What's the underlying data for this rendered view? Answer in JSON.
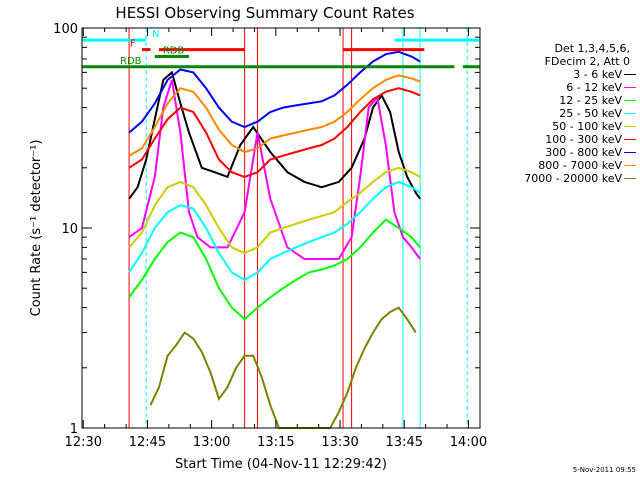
{
  "chart_data": {
    "type": "line",
    "title": "HESSI Observing Summary Count Rates",
    "xlabel": "Start Time (04-Nov-11 12:29:42)",
    "ylabel": "Count Rate (s⁻¹ detector⁻¹)",
    "yscale": "log",
    "ylim": [
      1,
      100
    ],
    "xlim_minutes": [
      0,
      93
    ],
    "x_ticks": [
      "12:30",
      "12:45",
      "13:00",
      "13:15",
      "13:30",
      "13:45",
      "14:00"
    ],
    "y_ticks": [
      "1",
      "10",
      "100"
    ],
    "detector_info": [
      "Det 1,3,4,5,6,",
      "FDecim 2, Att 0"
    ],
    "series": [
      {
        "name": "3 - 6 keV",
        "color": "#000000",
        "x": [
          11,
          13,
          15,
          17,
          19,
          21,
          23,
          25,
          28,
          31,
          34,
          37,
          40,
          44,
          48,
          52,
          56,
          60,
          63,
          66,
          68,
          70,
          72,
          74,
          76,
          78,
          79
        ],
        "y": [
          14,
          16,
          22,
          35,
          55,
          60,
          42,
          30,
          20,
          19,
          18,
          26,
          32,
          24,
          19,
          17,
          16,
          17,
          20,
          28,
          40,
          46,
          38,
          24,
          18,
          15,
          14
        ]
      },
      {
        "name": "6 - 12 keV",
        "color": "#ff00ff",
        "x": [
          11,
          14,
          17,
          19,
          21,
          23,
          25,
          27,
          30,
          34,
          38,
          41,
          44,
          48,
          52,
          56,
          60,
          63,
          65,
          67,
          69,
          71,
          73,
          75,
          77,
          79
        ],
        "y": [
          9,
          10,
          18,
          40,
          55,
          30,
          12,
          9,
          8,
          8,
          12,
          30,
          14,
          8,
          7,
          7,
          7,
          9,
          18,
          40,
          45,
          26,
          12,
          9,
          8,
          7
        ]
      },
      {
        "name": "12 - 25 keV",
        "color": "#00ff00",
        "x": [
          11,
          14,
          17,
          20,
          23,
          26,
          29,
          32,
          35,
          38,
          41,
          44,
          47,
          50,
          53,
          56,
          59,
          62,
          65,
          68,
          71,
          74,
          77,
          79
        ],
        "y": [
          4.5,
          5.5,
          7,
          8.5,
          9.5,
          9,
          7,
          5,
          4,
          3.5,
          4,
          4.5,
          5,
          5.5,
          6,
          6.2,
          6.5,
          7,
          8,
          9.5,
          11,
          10,
          9,
          8
        ]
      },
      {
        "name": "25 - 50 keV",
        "color": "#00ffff",
        "x": [
          11,
          14,
          17,
          20,
          23,
          26,
          29,
          32,
          35,
          38,
          41,
          44,
          47,
          50,
          53,
          56,
          59,
          62,
          65,
          68,
          71,
          74,
          77,
          79
        ],
        "y": [
          6,
          7.5,
          10,
          12,
          13,
          12.5,
          10,
          7.5,
          6,
          5.5,
          6,
          7,
          7.5,
          8,
          8.5,
          9,
          9.5,
          10.5,
          12,
          14,
          16,
          17,
          16,
          15
        ]
      },
      {
        "name": "50 - 100 keV",
        "color": "#cccc00",
        "x": [
          11,
          14,
          17,
          20,
          23,
          26,
          29,
          32,
          35,
          38,
          41,
          44,
          47,
          50,
          53,
          56,
          59,
          62,
          65,
          68,
          71,
          74,
          77,
          79
        ],
        "y": [
          8,
          9.5,
          13,
          16,
          17,
          16,
          13,
          10,
          8,
          7.5,
          8,
          9.5,
          10,
          10.5,
          11,
          11.5,
          12,
          13.5,
          15,
          17,
          19,
          20,
          19,
          18
        ]
      },
      {
        "name": "100 - 300 keV",
        "color": "#ff0000",
        "x": [
          11,
          14,
          17,
          20,
          23,
          26,
          29,
          32,
          35,
          38,
          41,
          44,
          47,
          50,
          53,
          56,
          59,
          62,
          65,
          68,
          71,
          74,
          77,
          79
        ],
        "y": [
          20,
          22,
          28,
          35,
          40,
          38,
          30,
          22,
          19,
          18,
          19,
          22,
          23,
          24,
          25,
          26,
          28,
          32,
          38,
          44,
          48,
          50,
          48,
          46
        ]
      },
      {
        "name": "300 - 800 keV",
        "color": "#0000ff",
        "x": [
          11,
          14,
          17,
          20,
          23,
          26,
          29,
          32,
          35,
          38,
          41,
          44,
          47,
          50,
          53,
          56,
          59,
          62,
          65,
          68,
          71,
          74,
          77,
          79
        ],
        "y": [
          30,
          34,
          42,
          55,
          62,
          60,
          50,
          40,
          34,
          32,
          34,
          38,
          40,
          41,
          42,
          43,
          46,
          52,
          60,
          68,
          74,
          76,
          72,
          68
        ]
      },
      {
        "name": "800 - 7000 keV",
        "color": "#ff8800",
        "x": [
          11,
          14,
          17,
          20,
          23,
          26,
          29,
          32,
          35,
          38,
          41,
          44,
          47,
          50,
          53,
          56,
          59,
          62,
          65,
          68,
          71,
          74,
          77,
          79
        ],
        "y": [
          23,
          25,
          32,
          42,
          50,
          48,
          40,
          31,
          26,
          24,
          25,
          28,
          29,
          30,
          31,
          32,
          34,
          38,
          44,
          50,
          55,
          58,
          56,
          54
        ]
      },
      {
        "name": "7000 - 20000 keV",
        "color": "#808000",
        "x": [
          16,
          18,
          20,
          22,
          24,
          26,
          28,
          30,
          32,
          34,
          36,
          38,
          40,
          42,
          44,
          46,
          48,
          50,
          52,
          54,
          56,
          58,
          60,
          62,
          64,
          66,
          68,
          70,
          72,
          74,
          76,
          78
        ],
        "y": [
          1.3,
          1.6,
          2.3,
          2.6,
          3,
          2.8,
          2.4,
          1.9,
          1.4,
          1.6,
          2,
          2.3,
          2.3,
          1.8,
          1.3,
          1,
          1,
          1,
          1,
          1,
          1,
          1,
          1.2,
          1.5,
          2,
          2.5,
          3,
          3.5,
          3.8,
          4,
          3.5,
          3
        ]
      }
    ],
    "flag_bars": [
      {
        "label": "N",
        "color": "#00ffff",
        "level": 87,
        "segments": [
          [
            0,
            15
          ],
          [
            73,
            93
          ]
        ]
      },
      {
        "label": "F",
        "color": "#ff0000",
        "level": 78,
        "segments": [
          [
            14,
            16
          ],
          [
            18,
            38
          ],
          [
            61,
            80
          ]
        ]
      },
      {
        "label": "RDB",
        "color": "#008800",
        "level": 72,
        "segments": [
          [
            17,
            25
          ]
        ]
      },
      {
        "label": "RDB",
        "color": "#008800",
        "level": 64,
        "segments": [
          [
            0,
            87
          ],
          [
            89,
            93
          ]
        ]
      }
    ],
    "markers": [
      {
        "x": 11,
        "color": "#ff0000"
      },
      {
        "x": 15,
        "color": "#00ffff",
        "dashed": true
      },
      {
        "x": 38,
        "color": "#ff0000"
      },
      {
        "x": 41,
        "color": "#ff0000"
      },
      {
        "x": 61,
        "color": "#ff0000"
      },
      {
        "x": 63,
        "color": "#ff0000"
      },
      {
        "x": 75,
        "color": "#00ffff"
      },
      {
        "x": 79,
        "color": "#00ffff"
      },
      {
        "x": 90,
        "color": "#00ffff",
        "dashed": true
      }
    ]
  },
  "footer_date": "5-Nov-2011 09:55"
}
